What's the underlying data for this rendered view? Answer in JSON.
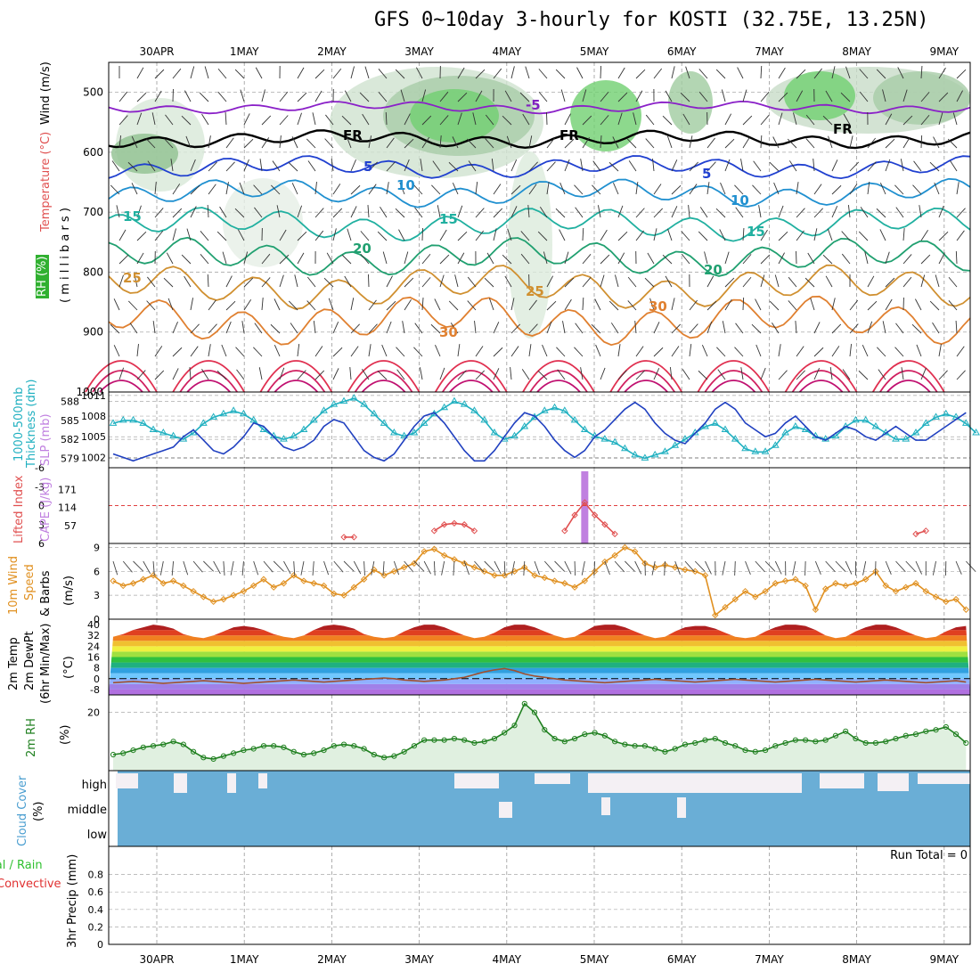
{
  "title": "GFS 0~10day 3-hourly for KOSTI (32.75E, 13.25N)",
  "days": [
    "30APR",
    "1MAY",
    "2MAY",
    "3MAY",
    "4MAY",
    "5MAY",
    "6MAY",
    "7MAY",
    "8MAY",
    "9MAY"
  ],
  "run_total": "Run Total = 0",
  "colors": {
    "wind_label": "#000000",
    "temp_label": "#e05050",
    "rh_label": "#30a030",
    "thickness": "#20b0c0",
    "slp": "#2040c0",
    "cape": "#c080e0",
    "li": "#e05050",
    "wind10": "#e09020",
    "rh2m": "#208020",
    "cloud": "#6aaed6",
    "precip_rain": "#30c030",
    "precip_conv": "#e03030"
  },
  "panel_labels": {
    "upper": {
      "wind": "Wind (m/s)",
      "temp": "Temperature (°C)",
      "rh": "RH (%)",
      "millibars": "( m i l l i b a r s )"
    },
    "thickness": {
      "t1": "1000-500mb",
      "t2": "Thickness (dm)",
      "slp": "SLP (mb)"
    },
    "cape": {
      "li": "Lifted Index",
      "cape": "CAPE (J/kg)"
    },
    "wind": {
      "l1": "10m Wind",
      "l2": "Speed",
      "l3": "& Barbs",
      "unit": "(m/s)"
    },
    "temp": {
      "l1": "2m Temp",
      "l2": "2m DewPt",
      "l3": "(6hr Min/Max)",
      "unit": "(°C)"
    },
    "rh": {
      "l1": "2m RH",
      "unit": "(%)"
    },
    "cloud": {
      "l1": "Cloud Cover",
      "unit": "(%)"
    },
    "precip": {
      "l1": "Total / Rain",
      "l2": "Convective",
      "l3": "3hr Precip (mm)"
    }
  },
  "axes": {
    "upper_ticks": [
      "500",
      "600",
      "700",
      "800",
      "900",
      "1000"
    ],
    "thickness_left_ticks": [
      "588",
      "585",
      "582",
      "579"
    ],
    "slp_ticks": [
      "1011",
      "1008",
      "1005",
      "1002"
    ],
    "li_ticks": [
      "-6",
      "-3",
      "0",
      "3",
      "6"
    ],
    "cape_ticks": [
      "171",
      "114",
      "57"
    ],
    "wind_ticks": [
      "9",
      "6",
      "3",
      "0"
    ],
    "temp_ticks": [
      "40",
      "32",
      "24",
      "16",
      "8",
      "0",
      "-8"
    ],
    "rh_ticks": [
      "20"
    ],
    "cloud_ticks": [
      "high",
      "middle",
      "low"
    ],
    "precip_ticks": [
      "0.8",
      "0.6",
      "0.4",
      "0.2",
      "0"
    ]
  },
  "contour_labels": [
    {
      "text": "-5",
      "color": "#8020c0"
    },
    {
      "text": "FR",
      "color": "#000000"
    },
    {
      "text": "FR",
      "color": "#000000"
    },
    {
      "text": "FR",
      "color": "#000000"
    },
    {
      "text": "5",
      "color": "#2040d0"
    },
    {
      "text": "5",
      "color": "#2040d0"
    },
    {
      "text": "10",
      "color": "#2090d0"
    },
    {
      "text": "10",
      "color": "#2090d0"
    },
    {
      "text": "15",
      "color": "#20b0a0"
    },
    {
      "text": "15",
      "color": "#20b0a0"
    },
    {
      "text": "15",
      "color": "#20b0a0"
    },
    {
      "text": "20",
      "color": "#20a070"
    },
    {
      "text": "20",
      "color": "#20a070"
    },
    {
      "text": "25",
      "color": "#d09030"
    },
    {
      "text": "25",
      "color": "#d09030"
    },
    {
      "text": "30",
      "color": "#e08030"
    },
    {
      "text": "30",
      "color": "#e08030"
    }
  ],
  "chart_data": {
    "type": "line",
    "title": "GFS 0~10day 3-hourly for KOSTI (32.75E, 13.25N)",
    "x_start": "29APR 12Z",
    "x_step_hours": 3,
    "upper_air": {
      "ylabel": "millibars",
      "ylim": [
        1000,
        450
      ],
      "isotherms": [
        {
          "label": "-5",
          "level_mb": 525
        },
        {
          "label": "0",
          "level_mb": 578
        },
        {
          "label": "5",
          "level_mb": 625
        },
        {
          "label": "10",
          "level_mb": 668
        },
        {
          "label": "15",
          "level_mb": 720
        },
        {
          "label": "20",
          "level_mb": 775
        },
        {
          "label": "25",
          "level_mb": 825
        },
        {
          "label": "30",
          "level_mb": 880
        }
      ]
    },
    "series": [
      {
        "name": "1000-500mb Thickness (dm)",
        "ylim": [
          577.5,
          589.5
        ],
        "values": [
          584.5,
          585,
          585,
          584.5,
          583.5,
          583,
          582.5,
          582,
          583,
          584.5,
          585.5,
          586,
          586.5,
          586,
          585,
          583.5,
          582.5,
          582,
          582.5,
          583.5,
          585,
          586.5,
          587.5,
          588,
          588.5,
          587.5,
          586,
          584.5,
          583,
          582.5,
          583,
          584.5,
          586,
          587,
          588,
          587.5,
          586.5,
          585,
          583,
          582,
          582.5,
          584,
          585.5,
          586.5,
          587,
          586.5,
          585,
          583.5,
          582.5,
          582,
          581.5,
          580.5,
          579.5,
          579,
          579.5,
          580,
          581,
          582,
          583,
          584,
          584.5,
          583.5,
          582,
          580.5,
          580,
          580,
          581,
          583,
          584,
          583.5,
          582.5,
          582,
          582.5,
          584,
          585,
          585,
          584,
          583,
          582,
          582,
          583,
          584.5,
          585.5,
          586,
          585.5,
          584.5,
          583
        ]
      },
      {
        "name": "SLP (mb)",
        "ylim": [
          1000.5,
          1011.5
        ],
        "values": [
          1002.5,
          1002,
          1001.5,
          1002,
          1002.5,
          1003,
          1003.5,
          1005,
          1006,
          1004.5,
          1003,
          1002.5,
          1003.5,
          1005,
          1007,
          1006.5,
          1005,
          1003.5,
          1003,
          1003.5,
          1004.5,
          1006.5,
          1007.5,
          1007,
          1005,
          1003,
          1002,
          1001.5,
          1002.5,
          1004.5,
          1006.5,
          1008,
          1008.5,
          1007,
          1005,
          1003,
          1001.5,
          1001.5,
          1003,
          1005,
          1007,
          1008.5,
          1008,
          1006.5,
          1004.5,
          1003,
          1002,
          1003,
          1005,
          1006,
          1007.5,
          1009,
          1010,
          1009,
          1007,
          1005.5,
          1004.5,
          1004,
          1005.5,
          1007,
          1009,
          1010,
          1009,
          1007,
          1006,
          1005,
          1005.5,
          1007,
          1008,
          1006.5,
          1005,
          1004.5,
          1005.5,
          1006.5,
          1006,
          1005,
          1004.5,
          1005.5,
          1006.5,
          1005.5,
          1004.5,
          1004.5,
          1005.5,
          1006.5,
          1007.5,
          1008.5
        ]
      },
      {
        "name": "Lifted Index",
        "ylim": [
          6,
          -6
        ],
        "values": [
          null,
          null,
          null,
          null,
          null,
          null,
          null,
          null,
          null,
          null,
          null,
          null,
          null,
          null,
          null,
          null,
          null,
          null,
          null,
          null,
          null,
          null,
          null,
          5,
          5,
          null,
          null,
          null,
          null,
          null,
          null,
          null,
          4,
          3,
          2.8,
          3,
          4,
          null,
          null,
          null,
          null,
          null,
          null,
          null,
          null,
          4,
          1.5,
          -0.5,
          1.5,
          3,
          4.5,
          null,
          null,
          null,
          null,
          null,
          null,
          null,
          null,
          null,
          null,
          null,
          null,
          null,
          null,
          null,
          null,
          null,
          null,
          null,
          null,
          null,
          null,
          null,
          null,
          null,
          null,
          null,
          null,
          null,
          4.5,
          4,
          null,
          null,
          null,
          null
        ]
      },
      {
        "name": "CAPE (J/kg)",
        "bars": [
          {
            "index": 47,
            "value": 240
          }
        ]
      },
      {
        "name": "10m Wind Speed (m/s)",
        "ylim": [
          0,
          9.5
        ],
        "values": [
          4.8,
          4.2,
          4.5,
          5,
          5.5,
          4.5,
          4.8,
          4.2,
          3.5,
          2.8,
          2.2,
          2.5,
          3,
          3.5,
          4.2,
          5,
          4,
          4.5,
          5.5,
          4.8,
          4.5,
          4.2,
          3.2,
          3,
          4,
          5,
          6.2,
          5.5,
          6,
          6.5,
          7,
          8.5,
          8.8,
          8,
          7.5,
          7,
          6.5,
          6,
          5.5,
          5.5,
          6,
          6.5,
          5.5,
          5.2,
          4.8,
          4.5,
          4,
          4.8,
          6,
          7.2,
          8,
          9,
          8.5,
          7,
          6.5,
          6.8,
          6.5,
          6.2,
          6,
          5.5,
          0.5,
          1.5,
          2.5,
          3.5,
          2.8,
          3.5,
          4.5,
          4.8,
          5,
          4.2,
          1.2,
          3.8,
          4.5,
          4.2,
          4.5,
          5,
          6,
          4.2,
          3.5,
          4,
          4.5,
          3.5,
          2.8,
          2.2,
          2.5,
          1.2
        ]
      },
      {
        "name": "2m Temp (°C)",
        "ylim": [
          -12,
          44
        ],
        "values": [
          31,
          33,
          36,
          38,
          40,
          39,
          37,
          33,
          31,
          30,
          32,
          35,
          38,
          39,
          38,
          36,
          33,
          31,
          30,
          32,
          36,
          39,
          40,
          39,
          37,
          33,
          31,
          30,
          31,
          35,
          38,
          40,
          40,
          38,
          35,
          32,
          30,
          31,
          34,
          38,
          40,
          40,
          38,
          35,
          32,
          30,
          31,
          35,
          39,
          40,
          40,
          38,
          35,
          32,
          30,
          31,
          35,
          38,
          39,
          39,
          37,
          34,
          31,
          30,
          31,
          35,
          38,
          40,
          40,
          39,
          36,
          32,
          30,
          31,
          35,
          38,
          40,
          40,
          38,
          35,
          32,
          30,
          31,
          35,
          38,
          39
        ]
      },
      {
        "name": "2m DewPt (°C)",
        "ylim": [
          -12,
          44
        ],
        "values": [
          -3,
          -2.5,
          -2,
          -2.5,
          -3,
          -3.5,
          -3,
          -2.5,
          -2,
          -1.5,
          -2,
          -2.5,
          -3,
          -3.5,
          -3,
          -2.5,
          -2,
          -1.5,
          -1,
          -1.5,
          -2,
          -2.5,
          -2,
          -1.5,
          -1,
          -0.5,
          0,
          0.5,
          0,
          -1,
          -1.5,
          -2,
          -1.5,
          -1,
          0,
          1,
          3,
          5,
          6.5,
          7.5,
          6,
          3.5,
          2,
          1,
          0,
          -1,
          -1.5,
          -2,
          -2.5,
          -3,
          -2.5,
          -2,
          -1.5,
          -1,
          -0.5,
          -1,
          -1.5,
          -2,
          -2.5,
          -2,
          -1.5,
          -1,
          -0.5,
          -1,
          -1.5,
          -2,
          -2.5,
          -2,
          -1.5,
          -1,
          -0.5,
          -1,
          -1.5,
          -2,
          -2.5,
          -2,
          -1.5,
          -1,
          -1.5,
          -2,
          -2.5,
          -3,
          -2.5,
          -2,
          -1.5,
          -2.5
        ]
      },
      {
        "name": "2m RH (%)",
        "ylim": [
          0,
          26
        ],
        "values": [
          5.5,
          6,
          7,
          8,
          8.5,
          9,
          10,
          9,
          6.5,
          4.5,
          4,
          5,
          6,
          7,
          7.5,
          8.5,
          8.5,
          8,
          6.5,
          5.5,
          6,
          7,
          8.5,
          9,
          8.5,
          7.5,
          5.5,
          4.5,
          5,
          6.5,
          8.5,
          10.5,
          10.5,
          10.5,
          11,
          10.5,
          9.5,
          10,
          11,
          13,
          15.5,
          23,
          20,
          14,
          11,
          10,
          11,
          12.5,
          13,
          12,
          10,
          9,
          8.5,
          8.5,
          7.5,
          6.5,
          7.5,
          9,
          9.5,
          10.5,
          11,
          9.5,
          8.5,
          7,
          6.5,
          7,
          8.5,
          9.5,
          10.5,
          10.5,
          10,
          10.5,
          12,
          13.5,
          11,
          9.5,
          9.5,
          10,
          11,
          12,
          12.5,
          13.5,
          14,
          15,
          12.5,
          9.5
        ]
      },
      {
        "name": "3hr Precip (mm)",
        "ylim": [
          0,
          1
        ],
        "values": []
      }
    ],
    "cloud_cover": {
      "layers": [
        "high",
        "middle",
        "low"
      ],
      "xlabel": "",
      "ylabel": "Cloud Cover (%)"
    }
  }
}
